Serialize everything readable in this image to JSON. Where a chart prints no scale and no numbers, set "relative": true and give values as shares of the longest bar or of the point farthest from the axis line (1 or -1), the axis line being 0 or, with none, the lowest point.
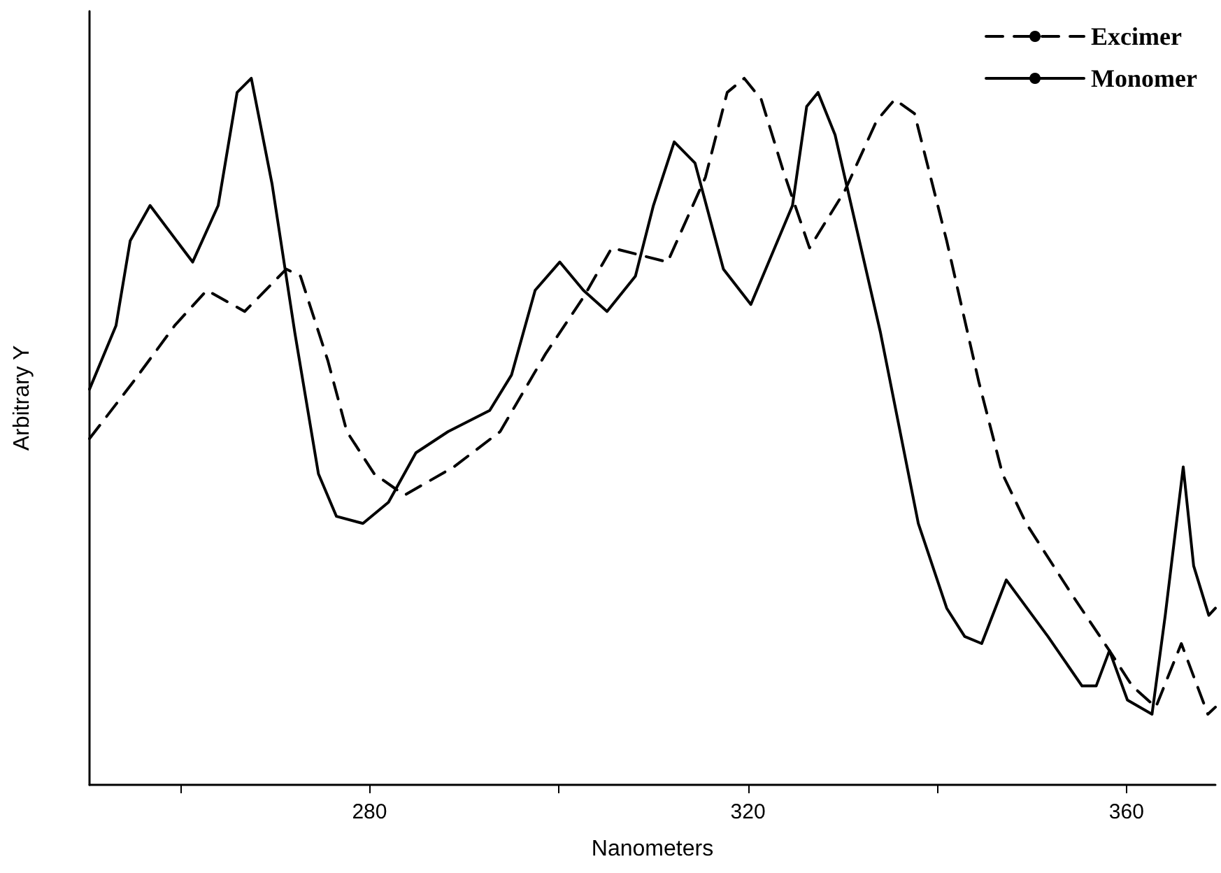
{
  "chart_data": {
    "type": "line",
    "relative": true,
    "xlabel": "Nanometers",
    "ylabel": "Arbitrary Y",
    "xlim": [
      250.4,
      369.4
    ],
    "xticks": [
      {
        "value": 260,
        "label": null
      },
      280,
      {
        "value": 300,
        "label": null
      },
      320,
      {
        "value": 340,
        "label": null
      },
      360
    ],
    "grid": false,
    "legend": "top right",
    "marker": "none",
    "series": [
      {
        "name": "Excimer",
        "color": "#000000",
        "line_style": "dashed",
        "x": [
          250.4,
          255.0,
          259.4,
          262.8,
          266.8,
          271.2,
          272.7,
          275.6,
          277.6,
          280.5,
          283.7,
          288.9,
          293.8,
          298.6,
          302.6,
          305.6,
          311.5,
          315.5,
          317.8,
          319.6,
          321.4,
          323.7,
          326.5,
          330.2,
          333.6,
          335.5,
          337.6,
          341.0,
          344.4,
          346.9,
          349.4,
          354.2,
          358.2,
          360.6,
          363.1,
          365.8,
          368.6,
          369.4
        ],
        "values": [
          0.49,
          0.57,
          0.65,
          0.7,
          0.67,
          0.73,
          0.72,
          0.6,
          0.5,
          0.44,
          0.41,
          0.45,
          0.5,
          0.61,
          0.69,
          0.76,
          0.74,
          0.86,
          0.98,
          1.0,
          0.97,
          0.87,
          0.76,
          0.84,
          0.94,
          0.97,
          0.95,
          0.77,
          0.57,
          0.44,
          0.37,
          0.27,
          0.19,
          0.14,
          0.11,
          0.2,
          0.1,
          0.11
        ]
      },
      {
        "name": "Monomer",
        "color": "#000000",
        "line_style": "solid",
        "x": [
          250.4,
          253.2,
          254.7,
          256.8,
          261.3,
          264.0,
          266.0,
          267.5,
          269.7,
          272.1,
          274.6,
          276.5,
          279.3,
          282.0,
          284.9,
          288.3,
          292.7,
          295.0,
          297.5,
          300.1,
          302.6,
          305.1,
          308.1,
          310.0,
          312.2,
          314.4,
          317.4,
          320.3,
          324.7,
          326.2,
          327.4,
          329.2,
          334.0,
          338.0,
          341.0,
          342.9,
          344.7,
          347.3,
          351.7,
          355.3,
          356.8,
          358.2,
          360.1,
          362.7,
          364.1,
          366.0,
          367.1,
          368.7,
          369.4
        ],
        "values": [
          0.56,
          0.65,
          0.77,
          0.82,
          0.74,
          0.82,
          0.98,
          1.0,
          0.85,
          0.64,
          0.44,
          0.38,
          0.37,
          0.4,
          0.47,
          0.5,
          0.53,
          0.58,
          0.7,
          0.74,
          0.7,
          0.67,
          0.72,
          0.82,
          0.91,
          0.88,
          0.73,
          0.68,
          0.82,
          0.96,
          0.98,
          0.92,
          0.64,
          0.37,
          0.25,
          0.21,
          0.2,
          0.29,
          0.21,
          0.14,
          0.14,
          0.19,
          0.12,
          0.1,
          0.24,
          0.45,
          0.31,
          0.24,
          0.25
        ]
      }
    ]
  }
}
